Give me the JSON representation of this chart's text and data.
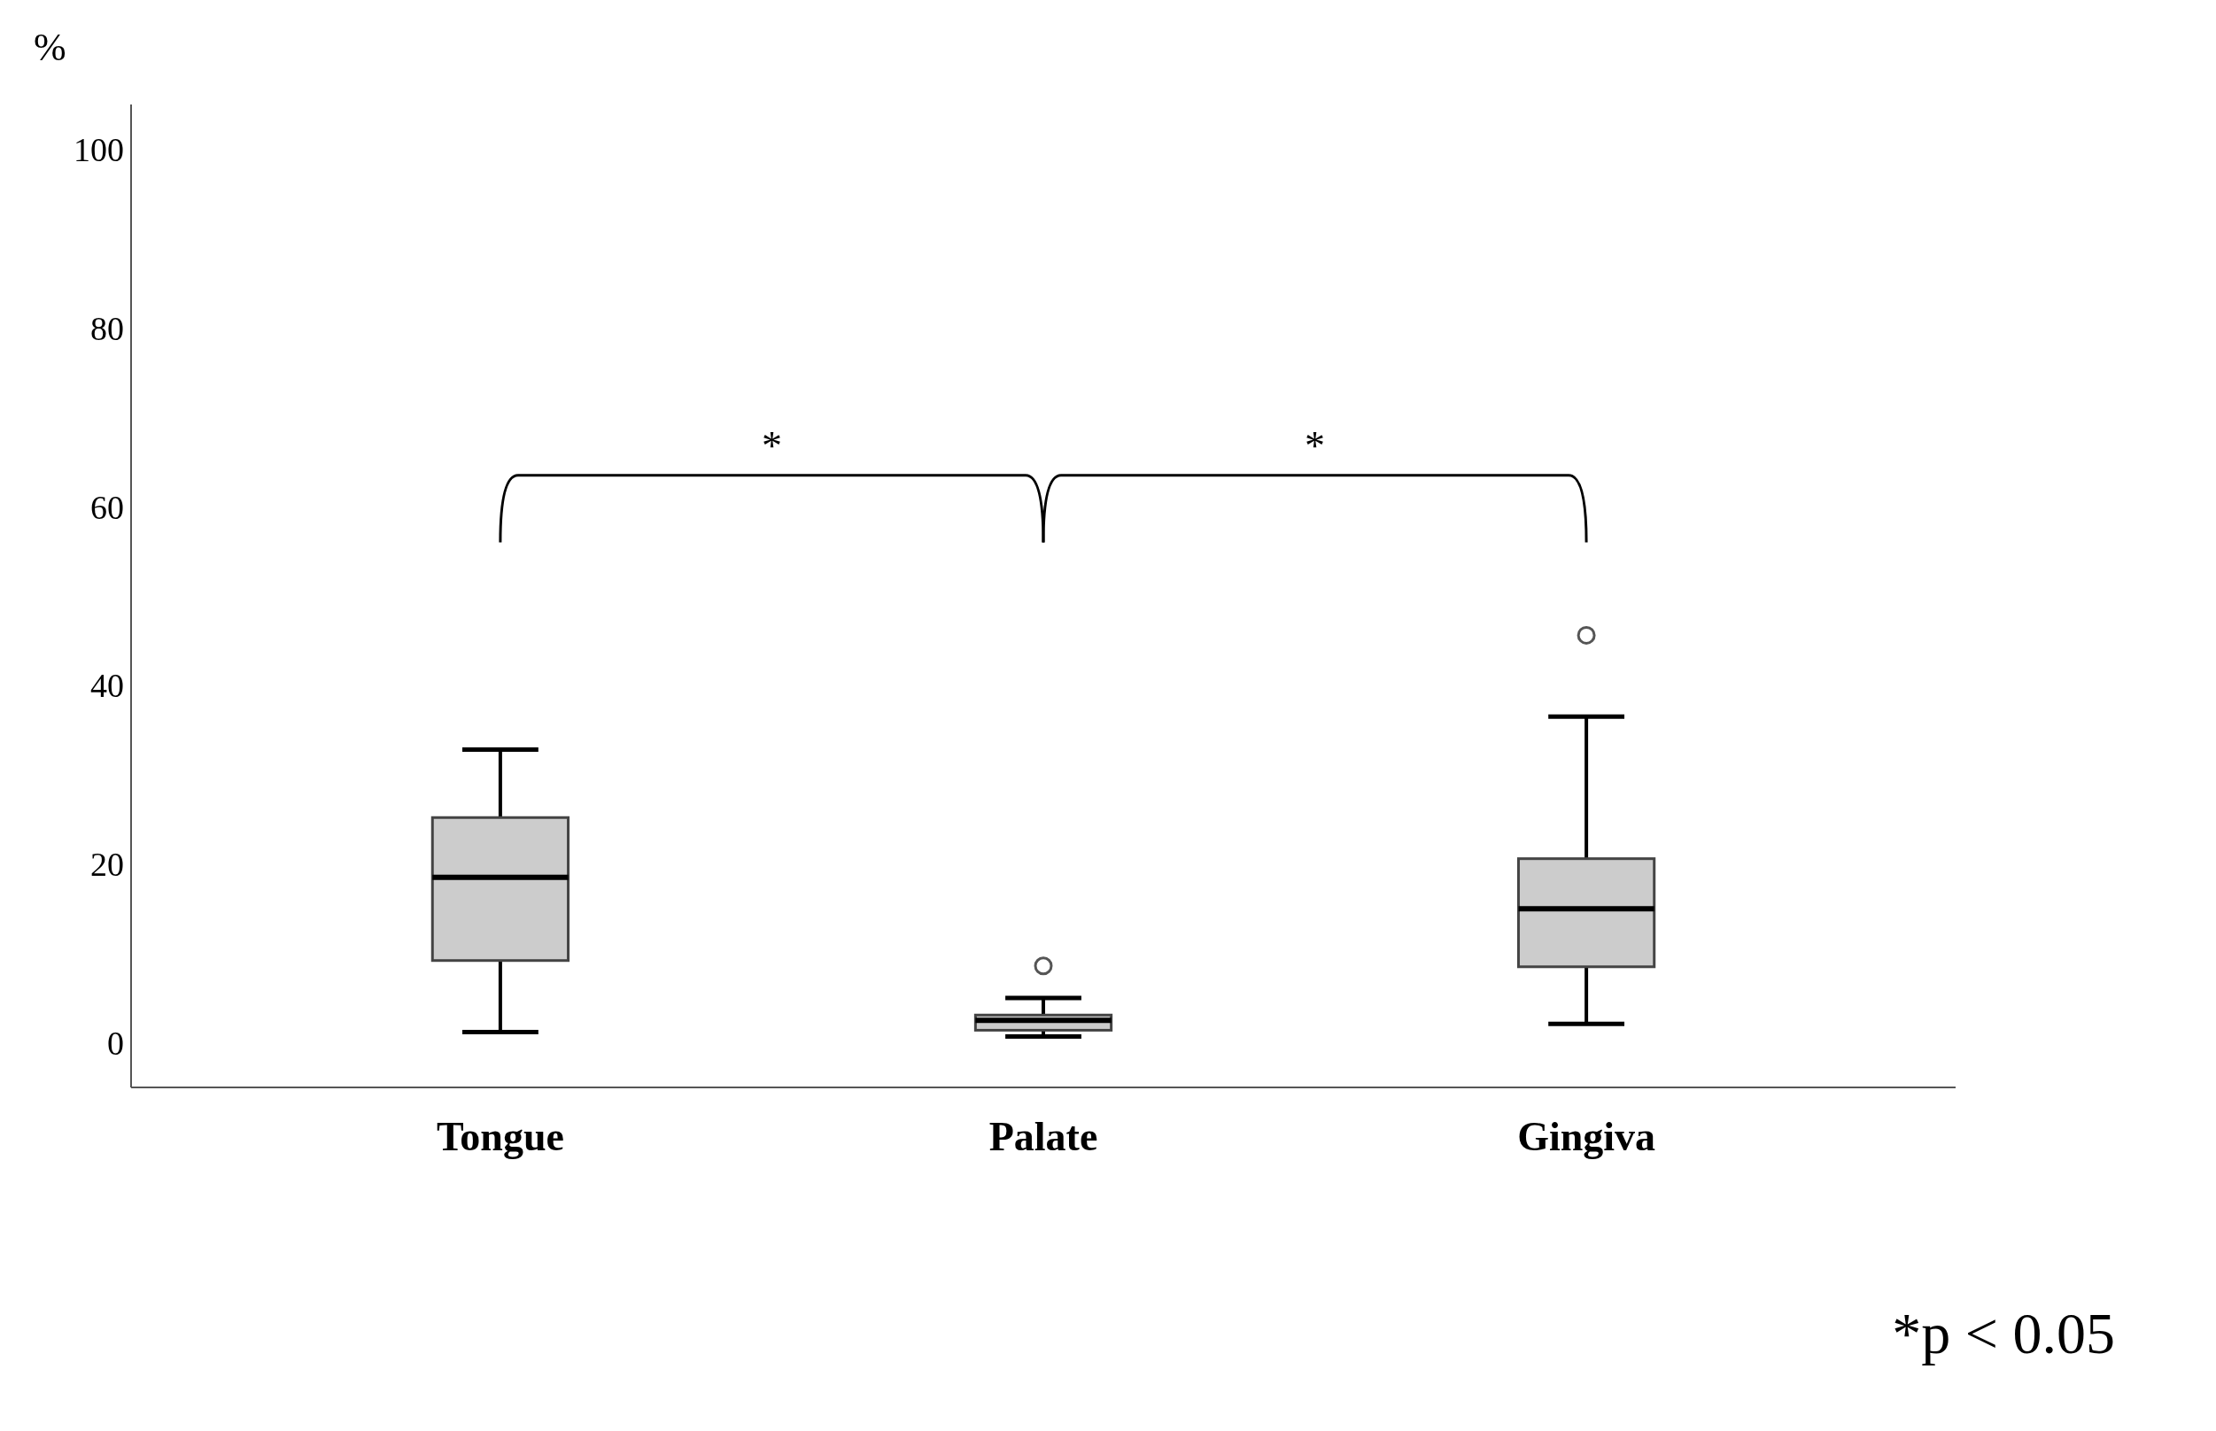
{
  "chart_data": {
    "type": "box",
    "ylabel": "%",
    "categories": [
      "Tongue",
      "Palate",
      "Gingiva"
    ],
    "color": "#cccccc",
    "boxes": [
      {
        "low": 1.2,
        "q1": 9.2,
        "median": 18.5,
        "q3": 25.2,
        "high": 32.8
      },
      {
        "low": 0.7,
        "q1": 1.4,
        "median": 2.5,
        "q3": 3.1,
        "high": 5.0,
        "outliers": [
          8.6
        ]
      },
      {
        "low": 2.1,
        "q1": 8.5,
        "median": 15.0,
        "q3": 20.6,
        "high": 36.5,
        "outliers": [
          45.6
        ]
      }
    ],
    "ylim": [
      -5,
      105
    ],
    "yticks": [
      0,
      20,
      40,
      60,
      80,
      100
    ],
    "annotations": [
      "*",
      "*",
      "*p < 0.05"
    ]
  }
}
